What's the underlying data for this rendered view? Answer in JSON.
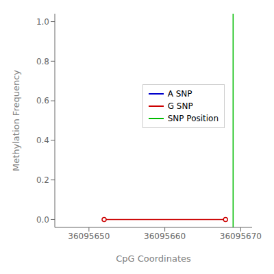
{
  "chart_data": {
    "type": "line",
    "xlabel": "CpG Coordinates",
    "ylabel": "Methylation Frequency",
    "xlim": [
      36095645.5,
      36095671.5
    ],
    "ylim": [
      -0.04,
      1.04
    ],
    "xticks": [
      36095650,
      36095660,
      36095670
    ],
    "yticks": [
      {
        "value": 0.0,
        "label": "0.0"
      },
      0.2,
      0.4,
      0.6,
      0.8,
      {
        "value": 1.0,
        "label": "1.0"
      }
    ],
    "series": [
      {
        "name": "A SNP",
        "color": "#0000cc",
        "x": [],
        "values": []
      },
      {
        "name": "G SNP",
        "color": "#cc0000",
        "marker": "circle",
        "x": [
          36095652,
          36095668
        ],
        "values": [
          0.0,
          0.0
        ]
      }
    ],
    "vertical_line": {
      "name": "SNP Position",
      "x": 36095669,
      "color": "#00bb00"
    },
    "legend": "right"
  }
}
